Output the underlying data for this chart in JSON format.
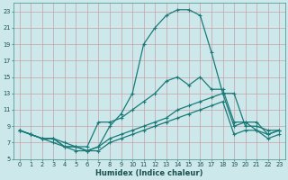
{
  "xlabel": "Humidex (Indice chaleur)",
  "bg_color": "#cce8ea",
  "line_color": "#1a7a78",
  "grid_color": "#b0d8da",
  "xlim": [
    -0.5,
    23.5
  ],
  "ylim": [
    5,
    24
  ],
  "yticks": [
    5,
    7,
    9,
    11,
    13,
    15,
    17,
    19,
    21,
    23
  ],
  "xticks": [
    0,
    1,
    2,
    3,
    4,
    5,
    6,
    7,
    8,
    9,
    10,
    11,
    12,
    13,
    14,
    15,
    16,
    17,
    18,
    19,
    20,
    21,
    22,
    23
  ],
  "line_big_x": [
    0,
    1,
    2,
    3,
    4,
    5,
    6,
    7,
    8,
    9,
    10,
    11,
    12,
    13,
    14,
    15,
    16,
    17,
    18,
    19,
    20,
    21,
    22,
    23
  ],
  "line_big_y": [
    8.5,
    8.0,
    7.5,
    7.0,
    6.5,
    6.0,
    6.0,
    6.5,
    9.0,
    10.5,
    13.0,
    19.0,
    21.0,
    22.5,
    23.2,
    23.2,
    22.5,
    18.0,
    13.0,
    13.0,
    9.0,
    9.0,
    8.5,
    8.5
  ],
  "line_mid_x": [
    0,
    1,
    2,
    3,
    4,
    5,
    6,
    7,
    8,
    9,
    10,
    11,
    12,
    13,
    14,
    15,
    16,
    17,
    18,
    19,
    20,
    21,
    22,
    23
  ],
  "line_mid_y": [
    8.5,
    8.0,
    7.5,
    7.5,
    6.5,
    6.5,
    6.5,
    9.5,
    9.5,
    10.0,
    11.0,
    12.0,
    13.0,
    14.5,
    15.0,
    14.0,
    15.0,
    13.5,
    13.5,
    9.5,
    9.5,
    8.5,
    8.0,
    8.5
  ],
  "line_low1_x": [
    0,
    1,
    2,
    3,
    4,
    5,
    6,
    7,
    8,
    9,
    10,
    11,
    12,
    13,
    14,
    15,
    16,
    17,
    18,
    19,
    20,
    21,
    22,
    23
  ],
  "line_low1_y": [
    8.5,
    8.0,
    7.5,
    7.5,
    6.5,
    6.5,
    6.0,
    6.5,
    7.5,
    8.0,
    8.5,
    9.0,
    9.5,
    10.0,
    11.0,
    11.5,
    12.0,
    12.5,
    13.0,
    9.0,
    9.5,
    9.5,
    8.0,
    8.5
  ],
  "line_low2_x": [
    0,
    1,
    2,
    3,
    4,
    5,
    6,
    7,
    8,
    9,
    10,
    11,
    12,
    13,
    14,
    15,
    16,
    17,
    18,
    19,
    20,
    21,
    22,
    23
  ],
  "line_low2_y": [
    8.5,
    8.0,
    7.5,
    7.5,
    7.0,
    6.5,
    6.0,
    6.0,
    7.0,
    7.5,
    8.0,
    8.5,
    9.0,
    9.5,
    10.0,
    10.5,
    11.0,
    11.5,
    12.0,
    8.0,
    8.5,
    8.5,
    7.5,
    8.0
  ]
}
